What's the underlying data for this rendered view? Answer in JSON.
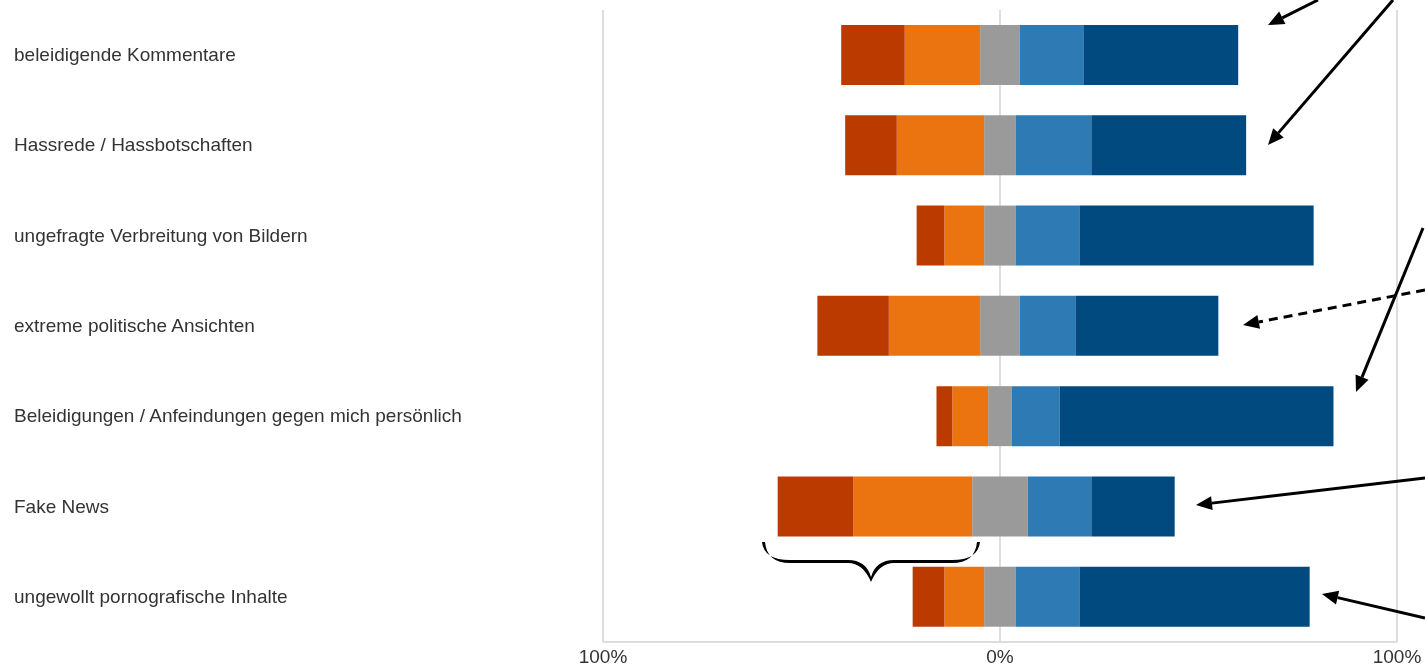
{
  "chart_data": {
    "type": "bar",
    "orientation": "horizontal",
    "stacked": true,
    "categories": [
      "beleidigende Kommentare",
      "Hassrede / Hassbotschaften",
      "ungefragte Verbreitung von Bildern",
      "extreme politische Ansichten",
      "Beleidigungen / Anfeindungen gegen mich persönlich",
      "Fake News",
      "ungewollt pornografische Inhalte"
    ],
    "series": [
      {
        "color": "#9a9a9a",
        "values": [
          -5,
          -4,
          -4,
          -5,
          -3,
          -7,
          -4
        ]
      },
      {
        "color": "#ec7410",
        "values": [
          -19,
          -22,
          -10,
          -23,
          -9,
          -30,
          -10
        ]
      },
      {
        "color": "#bb3a00",
        "values": [
          -16,
          -13,
          -7,
          -18,
          -4,
          -19,
          -8
        ]
      },
      {
        "color": "#9a9a9a",
        "values": [
          5,
          4,
          4,
          5,
          3,
          7,
          4
        ]
      },
      {
        "color": "#2e7ab4",
        "values": [
          16,
          19,
          16,
          14,
          12,
          16,
          16
        ]
      },
      {
        "color": "#004a80",
        "values": [
          39,
          39,
          59,
          36,
          69,
          21,
          58
        ]
      }
    ],
    "xlim": [
      -100,
      100
    ],
    "xticks": [
      {
        "value": -100,
        "label": "100%"
      },
      {
        "value": 0,
        "label": "0%"
      },
      {
        "value": 100,
        "label": "100%"
      }
    ],
    "grid": "x"
  }
}
